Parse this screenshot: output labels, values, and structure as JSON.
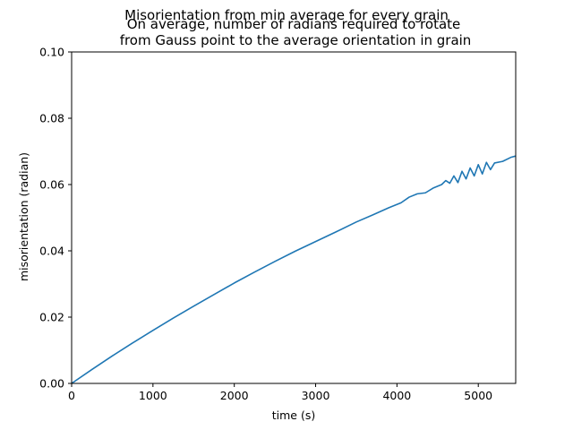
{
  "chart_data": {
    "type": "line",
    "title": "Misorientation from min average for every grain",
    "subtitle_lines": [
      "On average, number of radians required to rotate",
      "from Gauss point to the average orientation in grain"
    ],
    "xlabel": "time (s)",
    "ylabel": "misorientation (radian)",
    "xlim": [
      0,
      5460
    ],
    "ylim": [
      0,
      0.1
    ],
    "xticks": [
      0,
      1000,
      2000,
      3000,
      4000,
      5000
    ],
    "yticks": [
      0.0,
      0.02,
      0.04,
      0.06,
      0.08,
      0.1
    ],
    "xtick_labels": [
      "0",
      "1000",
      "2000",
      "3000",
      "4000",
      "5000"
    ],
    "ytick_labels": [
      "0.00",
      "0.02",
      "0.04",
      "0.06",
      "0.08",
      "0.10"
    ],
    "grid": false,
    "legend": "none",
    "series": [
      {
        "color": "#1f77b4",
        "x": [
          0,
          250,
          500,
          750,
          1000,
          1250,
          1500,
          1750,
          2000,
          2250,
          2500,
          2750,
          3000,
          3250,
          3500,
          3700,
          3900,
          4050,
          4150,
          4250,
          4350,
          4450,
          4550,
          4600,
          4650,
          4700,
          4750,
          4800,
          4850,
          4900,
          4950,
          5000,
          5050,
          5100,
          5150,
          5200,
          5300,
          5400,
          5460
        ],
        "y": [
          0.0,
          0.0042,
          0.0083,
          0.0122,
          0.016,
          0.0197,
          0.0233,
          0.0268,
          0.0303,
          0.0336,
          0.0368,
          0.0399,
          0.0428,
          0.0457,
          0.0487,
          0.0508,
          0.053,
          0.0545,
          0.0562,
          0.0572,
          0.0575,
          0.059,
          0.06,
          0.0612,
          0.0604,
          0.0626,
          0.0606,
          0.064,
          0.0617,
          0.065,
          0.0626,
          0.066,
          0.0632,
          0.0667,
          0.0645,
          0.0665,
          0.067,
          0.0682,
          0.0686
        ]
      }
    ]
  }
}
